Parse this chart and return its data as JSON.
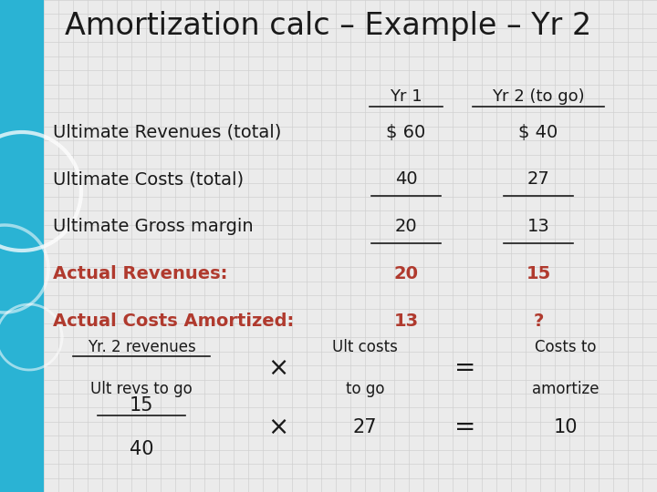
{
  "title": "Amortization calc – Example – Yr 2",
  "title_fontsize": 24,
  "bg_color": "#ebebeb",
  "left_panel_color": "#2ab3d4",
  "grid_color": "#d0d0d0",
  "text_color_black": "#1a1a1a",
  "text_color_red": "#b03a2e",
  "rows": [
    {
      "label": "Ultimate Revenues (total)",
      "yr1": "$ 60",
      "yr2": "$ 40",
      "color": "black",
      "underline": false
    },
    {
      "label": "Ultimate Costs (total)",
      "yr1": "40",
      "yr2": "27",
      "color": "black",
      "underline": true
    },
    {
      "label": "Ultimate Gross margin",
      "yr1": "20",
      "yr2": "13",
      "color": "black",
      "underline": true
    },
    {
      "label": "Actual Revenues:",
      "yr1": "20",
      "yr2": "15",
      "color": "red",
      "underline": false
    },
    {
      "label": "Actual Costs Amortized:",
      "yr1": "13",
      "yr2": "?",
      "color": "red",
      "underline": false
    }
  ],
  "col_header_yr1": "Yr 1",
  "col_header_yr2": "Yr 2 (to go)",
  "formula_line1_left": "Yr. 2 revenues",
  "formula_line1_right": "Ult revs to go",
  "formula_times": "×",
  "formula_ult_costs_line1": "Ult costs",
  "formula_ult_costs_line2": "to go",
  "formula_equals": "=",
  "formula_costs_line1": "Costs to",
  "formula_costs_line2": "amortize",
  "num_line1": "15",
  "num_line2": "40",
  "num_times": "×",
  "num_27": "27",
  "num_equals": "=",
  "num_10": "10"
}
